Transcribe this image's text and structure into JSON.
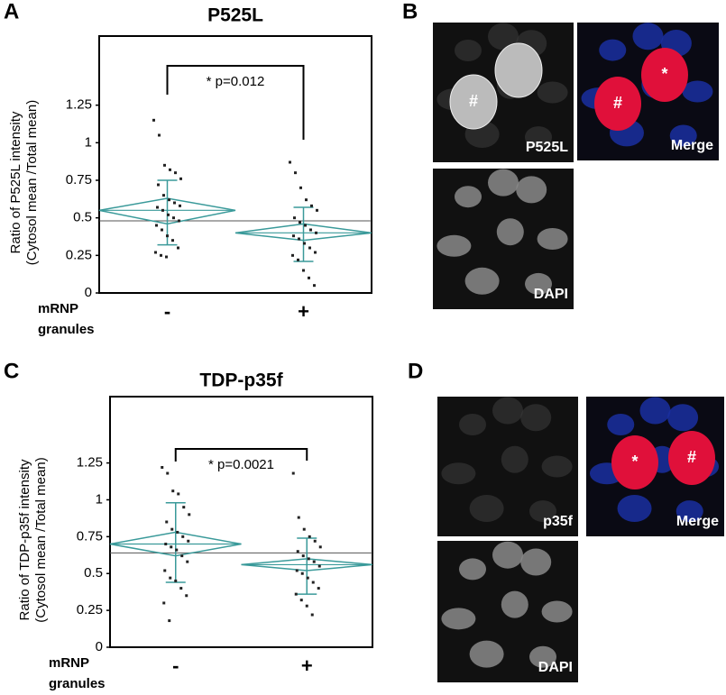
{
  "panels": [
    "A",
    "B",
    "C",
    "D"
  ],
  "chart_data": [
    {
      "type": "diamond",
      "title": "P525L",
      "ylabel": [
        "Ratio of P525L intensity",
        "(Cytosol mean /Total mean)"
      ],
      "xlabel": [
        "mRNP",
        "granules"
      ],
      "annotation": "* p=0.012",
      "categories": [
        "-",
        "+"
      ],
      "ylim": [
        0,
        1.71
      ],
      "yticks": [
        0,
        0.25,
        0.5,
        0.75,
        1,
        1.25
      ],
      "grand_mean": 0.48,
      "color": "#3a9a9a",
      "groups": [
        {
          "mean": 0.55,
          "ci_low": 0.46,
          "ci_high": 0.63,
          "sd_low": 0.32,
          "sd_high": 0.75,
          "points": [
            1.15,
            1.05,
            0.85,
            0.82,
            0.8,
            0.76,
            0.72,
            0.65,
            0.62,
            0.6,
            0.58,
            0.57,
            0.55,
            0.52,
            0.5,
            0.48,
            0.45,
            0.42,
            0.38,
            0.35,
            0.3,
            0.27,
            0.25,
            0.24
          ]
        },
        {
          "mean": 0.4,
          "ci_low": 0.35,
          "ci_high": 0.46,
          "sd_low": 0.21,
          "sd_high": 0.57,
          "points": [
            0.87,
            0.8,
            0.7,
            0.62,
            0.58,
            0.55,
            0.5,
            0.47,
            0.45,
            0.42,
            0.4,
            0.38,
            0.36,
            0.33,
            0.3,
            0.27,
            0.25,
            0.22,
            0.15,
            0.1,
            0.05
          ]
        }
      ]
    },
    {
      "type": "diamond",
      "title": "TDP-p35f",
      "ylabel": [
        "Ratio of TDP-p35f intensity",
        "(Cytosol mean /Total mean)"
      ],
      "xlabel": [
        "mRNP",
        "granules"
      ],
      "annotation": "* p=0.0021",
      "categories": [
        "-",
        "+"
      ],
      "ylim": [
        0,
        1.7
      ],
      "yticks": [
        0,
        0.25,
        0.5,
        0.75,
        1,
        1.25
      ],
      "grand_mean": 0.64,
      "color": "#3a9a9a",
      "groups": [
        {
          "mean": 0.7,
          "ci_low": 0.62,
          "ci_high": 0.78,
          "sd_low": 0.44,
          "sd_high": 0.98,
          "points": [
            1.22,
            1.18,
            1.06,
            1.04,
            0.95,
            0.9,
            0.85,
            0.8,
            0.78,
            0.75,
            0.72,
            0.7,
            0.68,
            0.66,
            0.62,
            0.58,
            0.52,
            0.47,
            0.45,
            0.4,
            0.35,
            0.3,
            0.18
          ]
        },
        {
          "mean": 0.56,
          "ci_low": 0.52,
          "ci_high": 0.6,
          "sd_low": 0.36,
          "sd_high": 0.74,
          "points": [
            1.18,
            0.88,
            0.8,
            0.75,
            0.72,
            0.68,
            0.65,
            0.62,
            0.6,
            0.58,
            0.55,
            0.52,
            0.5,
            0.47,
            0.44,
            0.4,
            0.36,
            0.32,
            0.28,
            0.22
          ]
        }
      ]
    }
  ],
  "images": [
    {
      "label": "P525L",
      "symbols": [
        "#"
      ]
    },
    {
      "label": "Merge",
      "symbols": [
        "#",
        "*"
      ]
    },
    {
      "label": "DAPI",
      "symbols": []
    },
    {
      "label": "p35f",
      "symbols": []
    },
    {
      "label": "Merge",
      "symbols": [
        "*",
        "#"
      ]
    },
    {
      "label": "DAPI",
      "symbols": []
    }
  ]
}
